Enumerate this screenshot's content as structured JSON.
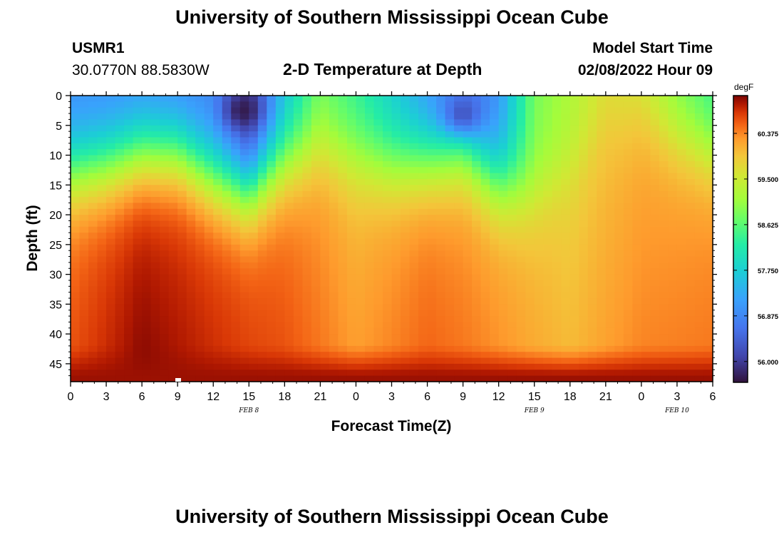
{
  "header": {
    "title": "University of Southern Mississippi Ocean Cube",
    "station_id": "USMR1",
    "coordinates": "30.0770N  88.5830W",
    "plot_title": "2-D Temperature at Depth",
    "model_start_label": "Model Start Time",
    "model_start_value": "02/08/2022 Hour 09"
  },
  "footer": {
    "title": "University of Southern Mississippi Ocean Cube"
  },
  "chart_data": {
    "type": "heatmap",
    "title": "2-D Temperature at Depth",
    "xlabel": "Forecast Time(Z)",
    "ylabel": "Depth (ft)",
    "x_tick_labels": [
      "0",
      "3",
      "6",
      "9",
      "12",
      "15",
      "18",
      "21",
      "0",
      "3",
      "6",
      "9",
      "12",
      "15",
      "18",
      "21",
      "0",
      "3",
      "6"
    ],
    "date_labels": [
      {
        "label": "FEB 8",
        "hour_index": 5
      },
      {
        "label": "FEB 9",
        "hour_index": 13
      },
      {
        "label": "FEB 10",
        "hour_index": 17
      }
    ],
    "xlim_hours": [
      0,
      54
    ],
    "y_tick_labels": [
      "0",
      "5",
      "10",
      "15",
      "20",
      "25",
      "30",
      "35",
      "40",
      "45"
    ],
    "ylim_ft": [
      0,
      48
    ],
    "colorbar": {
      "units": "degF",
      "min": 55.6,
      "max": 61.1,
      "tick_values": [
        56.0,
        56.875,
        57.75,
        58.625,
        59.5,
        60.375
      ],
      "tick_labels": [
        "56.000",
        "56.875",
        "57.750",
        "58.625",
        "59.500",
        "60.375"
      ]
    },
    "thermocline_depth_ft_by_hour": [
      [
        0,
        12.5
      ],
      [
        3,
        11.5
      ],
      [
        6,
        9.5
      ],
      [
        9,
        9.5
      ],
      [
        12,
        13.5
      ],
      [
        15,
        15.5
      ],
      [
        18,
        11.0
      ],
      [
        21,
        8.5
      ],
      [
        24,
        10.5
      ],
      [
        27,
        11.5
      ],
      [
        30,
        10.5
      ],
      [
        33,
        8.5
      ],
      [
        36,
        14.5
      ],
      [
        39,
        16.5
      ],
      [
        42,
        12.5
      ],
      [
        45,
        4.5
      ],
      [
        48,
        3.0
      ],
      [
        51,
        7.0
      ],
      [
        54,
        9.5
      ]
    ],
    "surface_temp_degF_by_hour": [
      [
        0,
        56.9
      ],
      [
        3,
        56.9
      ],
      [
        6,
        56.9
      ],
      [
        9,
        56.8
      ],
      [
        12,
        56.8
      ],
      [
        15,
        55.9
      ],
      [
        18,
        57.5
      ],
      [
        21,
        58.7
      ],
      [
        24,
        58.3
      ],
      [
        27,
        57.7
      ],
      [
        30,
        57.0
      ],
      [
        33,
        56.3
      ],
      [
        36,
        57.0
      ],
      [
        39,
        58.8
      ],
      [
        42,
        59.2
      ],
      [
        45,
        59.6
      ],
      [
        48,
        59.4
      ],
      [
        51,
        58.8
      ],
      [
        54,
        58.3
      ]
    ],
    "deep_temp_degF_by_hour": [
      [
        0,
        60.5
      ],
      [
        6,
        60.9
      ],
      [
        12,
        60.7
      ],
      [
        18,
        60.5
      ],
      [
        24,
        60.1
      ],
      [
        30,
        60.4
      ],
      [
        36,
        60.2
      ],
      [
        42,
        59.9
      ],
      [
        48,
        60.2
      ],
      [
        54,
        60.3
      ]
    ],
    "bottom_temp_degF": 61.0,
    "annotations": [
      {
        "type": "cold-core",
        "center_hour": 14.5,
        "center_depth_ft": 2.5,
        "temp_degF": 55.7
      },
      {
        "type": "cold-patch",
        "center_hour": 33,
        "center_depth_ft": 3,
        "temp_degF": 56.3
      }
    ]
  }
}
